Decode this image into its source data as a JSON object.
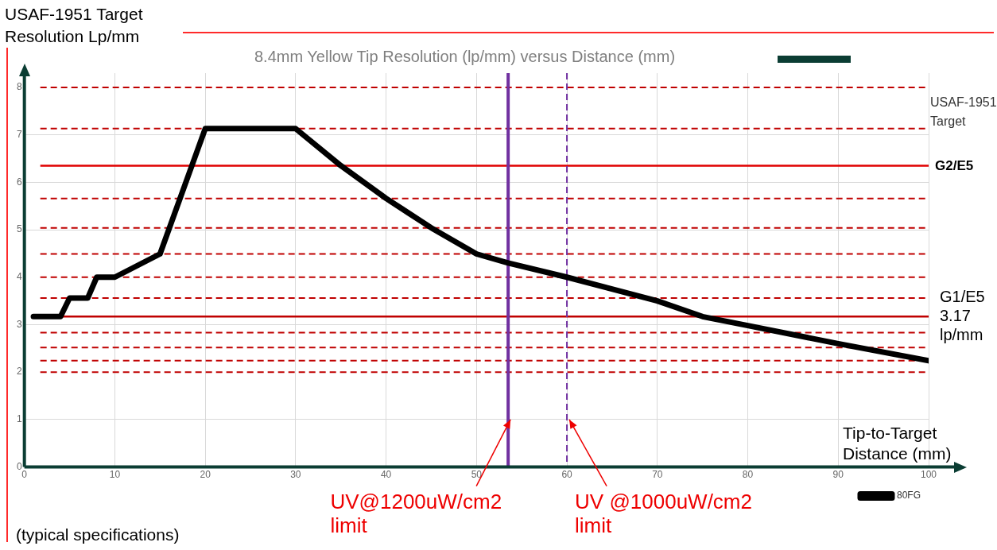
{
  "chart_data": {
    "type": "line",
    "title": "8.4mm Yellow Tip Resolution (lp/mm) versus Distance (mm)",
    "xlabel": "Tip-to-Target Distance (mm)",
    "ylabel": "USAF-1951 Target Resolution Lp/mm",
    "series": [
      {
        "name": "80FG",
        "color": "#000000",
        "x": [
          1,
          4,
          5,
          7,
          8,
          10,
          15,
          20,
          30,
          35,
          40,
          45,
          50,
          53.5,
          60,
          70,
          75,
          80,
          90,
          100
        ],
        "values": [
          3.17,
          3.17,
          3.56,
          3.56,
          4.0,
          4.0,
          4.49,
          7.13,
          7.13,
          6.35,
          5.66,
          5.04,
          4.49,
          4.3,
          4.0,
          3.5,
          3.17,
          2.98,
          2.6,
          2.24
        ]
      }
    ],
    "xlim": [
      0,
      100
    ],
    "xticks": [
      0,
      10,
      20,
      30,
      40,
      50,
      60,
      70,
      80,
      90,
      100
    ],
    "ylim": [
      0,
      8.3
    ],
    "yticks": [
      0,
      1,
      2,
      3,
      4,
      5,
      6,
      7,
      8
    ],
    "grid": true,
    "legend": "bottom",
    "marker": "none",
    "line_style": "solid",
    "ref_lines": [
      {
        "axis": "y",
        "value": 8,
        "color": "#c00000",
        "line_style": "dashed"
      },
      {
        "axis": "y",
        "value": 7.13,
        "color": "#c00000",
        "line_style": "dashed"
      },
      {
        "axis": "y",
        "value": 6.35,
        "label": "G2/E5",
        "color": "#e00000",
        "line_style": "solid"
      },
      {
        "axis": "y",
        "value": 5.66,
        "color": "#c00000",
        "line_style": "dashed"
      },
      {
        "axis": "y",
        "value": 5.04,
        "color": "#c00000",
        "line_style": "dashed"
      },
      {
        "axis": "y",
        "value": 4.49,
        "color": "#c00000",
        "line_style": "dashed"
      },
      {
        "axis": "y",
        "value": 4.0,
        "color": "#c00000",
        "line_style": "dashed"
      },
      {
        "axis": "y",
        "value": 3.56,
        "color": "#c00000",
        "line_style": "dashed"
      },
      {
        "axis": "y",
        "value": 3.17,
        "label": "G1/E5 3.17 lp/mm",
        "color": "#c00000",
        "line_style": "solid"
      },
      {
        "axis": "y",
        "value": 2.83,
        "color": "#c00000",
        "line_style": "dashed"
      },
      {
        "axis": "y",
        "value": 2.52,
        "color": "#c00000",
        "line_style": "dashed"
      },
      {
        "axis": "y",
        "value": 2.24,
        "color": "#c00000",
        "line_style": "dashed"
      },
      {
        "axis": "y",
        "value": 2.0,
        "color": "#c00000",
        "line_style": "dashed"
      },
      {
        "axis": "x",
        "value": 53.5,
        "label": "UV@1200uW/cm2 limit",
        "color": "#7030a0",
        "line_style": "solid"
      },
      {
        "axis": "x",
        "value": 60,
        "label": "UV @1000uW/cm2 limit",
        "color": "#7030a0",
        "line_style": "dashed"
      }
    ],
    "annotations": [
      "USAF-1951 Target",
      "(typical specifications)"
    ]
  }
}
